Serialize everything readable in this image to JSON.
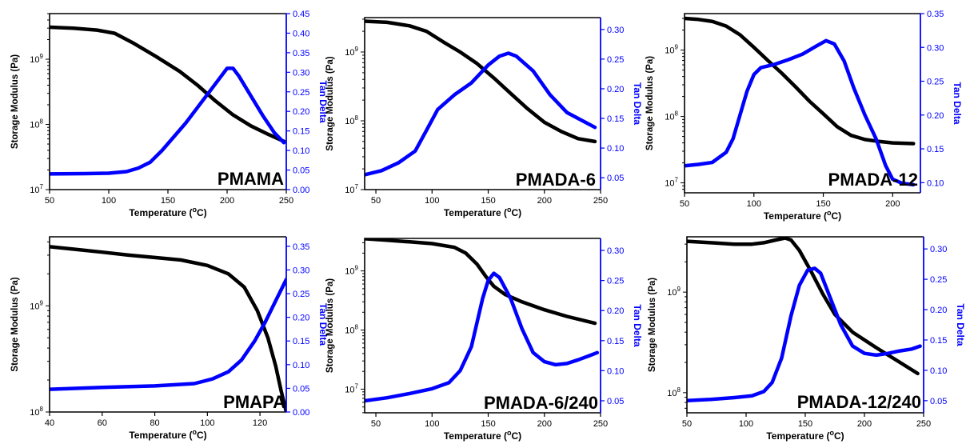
{
  "chart_data": [
    {
      "type": "line",
      "title": "PMAMA",
      "xlabel": "Temperature (°C)",
      "ylabel": "Storage Modulus (Pa)",
      "y2label": "Tan Delta",
      "xlim": [
        50,
        250
      ],
      "xticks": [
        50,
        100,
        150,
        200,
        250
      ],
      "ylim_log": [
        7.0,
        9.7
      ],
      "yticks_exp": [
        7,
        8,
        9
      ],
      "y2lim": [
        0,
        0.45
      ],
      "y2ticks": [
        0.0,
        0.05,
        0.1,
        0.15,
        0.2,
        0.25,
        0.3,
        0.35,
        0.4,
        0.45
      ],
      "y2tick_labels": [
        "0.00",
        "0.05",
        "0.10",
        "0.15",
        "0.20",
        "0.25",
        "0.30",
        "0.35",
        "0.40",
        "0.45"
      ],
      "series": [
        {
          "axis": "left",
          "color": "#000000",
          "x": [
            50,
            70,
            90,
            105,
            120,
            140,
            160,
            175,
            190,
            205,
            220,
            235,
            248
          ],
          "y": [
            3100000000.0,
            3000000000.0,
            2800000000.0,
            2500000000.0,
            1800000000.0,
            1100000000.0,
            650000000.0,
            400000000.0,
            230000000.0,
            140000000.0,
            95000000.0,
            70000000.0,
            55000000.0
          ]
        },
        {
          "axis": "right",
          "color": "#0000ff",
          "x": [
            50,
            80,
            100,
            115,
            125,
            135,
            145,
            155,
            165,
            175,
            185,
            195,
            200,
            205,
            210,
            220,
            230,
            240,
            248
          ],
          "y": [
            0.04,
            0.041,
            0.042,
            0.046,
            0.055,
            0.07,
            0.1,
            0.135,
            0.17,
            0.21,
            0.25,
            0.29,
            0.31,
            0.31,
            0.29,
            0.24,
            0.19,
            0.145,
            0.12
          ]
        }
      ]
    },
    {
      "type": "line",
      "title": "PMADA-6",
      "xlabel": "Temperature (°C)",
      "ylabel": "Storage Modulus (Pa)",
      "y2label": "Tan Delta",
      "xlim": [
        40,
        250
      ],
      "xticks": [
        50,
        100,
        150,
        200,
        250
      ],
      "ylim_log": [
        7.0,
        9.5
      ],
      "yticks_exp": [
        7,
        8,
        9
      ],
      "y2lim": [
        0.03,
        0.32
      ],
      "y2ticks": [
        0.05,
        0.1,
        0.15,
        0.2,
        0.25,
        0.3
      ],
      "y2tick_labels": [
        "0.05",
        "0.10",
        "0.15",
        "0.20",
        "0.25",
        "0.30"
      ],
      "series": [
        {
          "axis": "left",
          "color": "#000000",
          "x": [
            40,
            60,
            80,
            95,
            110,
            125,
            140,
            155,
            170,
            185,
            200,
            215,
            230,
            245
          ],
          "y": [
            2800000000.0,
            2700000000.0,
            2400000000.0,
            2000000000.0,
            1400000000.0,
            1000000000.0,
            680000000.0,
            420000000.0,
            250000000.0,
            150000000.0,
            95000000.0,
            70000000.0,
            55000000.0,
            50000000.0
          ]
        },
        {
          "axis": "right",
          "color": "#0000ff",
          "x": [
            40,
            55,
            70,
            85,
            95,
            105,
            120,
            135,
            150,
            160,
            168,
            175,
            190,
            205,
            220,
            235,
            245
          ],
          "y": [
            0.055,
            0.062,
            0.075,
            0.095,
            0.13,
            0.165,
            0.19,
            0.21,
            0.24,
            0.255,
            0.26,
            0.255,
            0.23,
            0.19,
            0.16,
            0.145,
            0.135
          ]
        }
      ]
    },
    {
      "type": "line",
      "title": "PMADA-12",
      "xlabel": "Temperature (°C)",
      "ylabel": "Storage Modulus (Pa)",
      "y2label": "Tan Delta",
      "xlim": [
        50,
        220
      ],
      "xticks": [
        50,
        100,
        150,
        200
      ],
      "ylim_log": [
        6.85,
        9.55
      ],
      "yticks_exp": [
        7,
        8,
        9
      ],
      "y2lim": [
        0.085,
        0.35
      ],
      "y2ticks": [
        0.1,
        0.15,
        0.2,
        0.25,
        0.3,
        0.35
      ],
      "y2tick_labels": [
        "0.10",
        "0.15",
        "0.20",
        "0.25",
        "0.30",
        "0.35"
      ],
      "series": [
        {
          "axis": "left",
          "color": "#000000",
          "x": [
            50,
            60,
            70,
            80,
            90,
            100,
            110,
            120,
            130,
            140,
            150,
            160,
            170,
            180,
            190,
            200,
            215
          ],
          "y": [
            3000000000.0,
            2900000000.0,
            2700000000.0,
            2300000000.0,
            1700000000.0,
            1100000000.0,
            700000000.0,
            450000000.0,
            280000000.0,
            170000000.0,
            110000000.0,
            70000000.0,
            52000000.0,
            45000000.0,
            42000000.0,
            40000000.0,
            39000000.0
          ]
        },
        {
          "axis": "right",
          "color": "#0000ff",
          "x": [
            50,
            60,
            70,
            80,
            85,
            90,
            95,
            100,
            105,
            115,
            125,
            135,
            145,
            152,
            158,
            165,
            172,
            180,
            188,
            195,
            200,
            207,
            215
          ],
          "y": [
            0.125,
            0.127,
            0.13,
            0.145,
            0.165,
            0.2,
            0.235,
            0.26,
            0.27,
            0.275,
            0.282,
            0.29,
            0.302,
            0.31,
            0.305,
            0.28,
            0.24,
            0.2,
            0.165,
            0.125,
            0.105,
            0.099,
            0.097
          ]
        }
      ]
    },
    {
      "type": "line",
      "title": "PMAPA",
      "xlabel": "Temperature (°C)",
      "ylabel": "Storage Modulus (Pa)",
      "y2label": "Tan Delta",
      "xlim": [
        40,
        130
      ],
      "xticks": [
        40,
        60,
        80,
        100,
        120
      ],
      "ylim_log": [
        8.0,
        9.65
      ],
      "yticks_exp": [
        8,
        9
      ],
      "y2lim": [
        0,
        0.37
      ],
      "y2ticks": [
        0.0,
        0.05,
        0.1,
        0.15,
        0.2,
        0.25,
        0.3,
        0.35
      ],
      "y2tick_labels": [
        "0.00",
        "0.05",
        "0.10",
        "0.15",
        "0.20",
        "0.25",
        "0.30",
        "0.35"
      ],
      "series": [
        {
          "axis": "left",
          "color": "#000000",
          "x": [
            40,
            50,
            60,
            70,
            80,
            90,
            100,
            108,
            114,
            119,
            123,
            126,
            128,
            130
          ],
          "y": [
            3600000000.0,
            3400000000.0,
            3200000000.0,
            3000000000.0,
            2850000000.0,
            2700000000.0,
            2400000000.0,
            2000000000.0,
            1500000000.0,
            900000000.0,
            500000000.0,
            270000000.0,
            160000000.0,
            100000000.0
          ]
        },
        {
          "axis": "right",
          "color": "#0000ff",
          "x": [
            40,
            60,
            80,
            95,
            102,
            108,
            113,
            118,
            122,
            126,
            130
          ],
          "y": [
            0.048,
            0.052,
            0.055,
            0.06,
            0.07,
            0.085,
            0.11,
            0.15,
            0.19,
            0.235,
            0.28
          ]
        }
      ]
    },
    {
      "type": "line",
      "title": "PMADA-6/240",
      "xlabel": "Temperature (°C)",
      "ylabel": "Storage Modulus (Pa)",
      "y2label": "Tan Delta",
      "xlim": [
        40,
        250
      ],
      "xticks": [
        50,
        100,
        150,
        200,
        250
      ],
      "ylim_log": [
        6.6,
        9.55
      ],
      "yticks_exp": [
        7,
        8,
        9
      ],
      "y2lim": [
        0.03,
        0.32
      ],
      "y2ticks": [
        0.05,
        0.1,
        0.15,
        0.2,
        0.25,
        0.3
      ],
      "y2tick_labels": [
        "0.05",
        "0.10",
        "0.15",
        "0.20",
        "0.25",
        "0.30"
      ],
      "series": [
        {
          "axis": "left",
          "color": "#000000",
          "x": [
            40,
            60,
            80,
            100,
            120,
            130,
            140,
            148,
            155,
            165,
            180,
            200,
            220,
            245
          ],
          "y": [
            3500000000.0,
            3300000000.0,
            3100000000.0,
            2900000000.0,
            2500000000.0,
            2000000000.0,
            1300000000.0,
            800000000.0,
            550000000.0,
            400000000.0,
            300000000.0,
            220000000.0,
            170000000.0,
            130000000.0
          ]
        },
        {
          "axis": "right",
          "color": "#0000ff",
          "x": [
            40,
            60,
            80,
            100,
            115,
            125,
            135,
            145,
            150,
            155,
            160,
            170,
            180,
            190,
            200,
            210,
            220,
            230,
            240,
            247
          ],
          "y": [
            0.05,
            0.055,
            0.062,
            0.07,
            0.08,
            0.1,
            0.14,
            0.22,
            0.25,
            0.262,
            0.255,
            0.22,
            0.17,
            0.13,
            0.115,
            0.11,
            0.112,
            0.118,
            0.125,
            0.13
          ]
        }
      ]
    },
    {
      "type": "line",
      "title": "PMADA-12/240",
      "xlabel": "Temperature (°C)",
      "ylabel": "Storage Modulus (Pa)",
      "y2label": "Tan Delta",
      "xlim": [
        50,
        250
      ],
      "xticks": [
        50,
        100,
        150,
        200,
        250
      ],
      "ylim_log": [
        7.8,
        9.55
      ],
      "yticks_exp": [
        8,
        9
      ],
      "y2lim": [
        0.03,
        0.32
      ],
      "y2ticks": [
        0.05,
        0.1,
        0.15,
        0.2,
        0.25,
        0.3
      ],
      "y2tick_labels": [
        "0.05",
        "0.10",
        "0.15",
        "0.20",
        "0.25",
        "0.30"
      ],
      "series": [
        {
          "axis": "left",
          "color": "#000000",
          "x": [
            50,
            70,
            90,
            105,
            115,
            125,
            133,
            138,
            145,
            155,
            165,
            175,
            190,
            210,
            230,
            245
          ],
          "y": [
            3200000000.0,
            3100000000.0,
            3000000000.0,
            3000000000.0,
            3100000000.0,
            3300000000.0,
            3450000000.0,
            3300000000.0,
            2600000000.0,
            1600000000.0,
            950000000.0,
            600000000.0,
            400000000.0,
            280000000.0,
            200000000.0,
            155000000.0
          ]
        },
        {
          "axis": "right",
          "color": "#0000ff",
          "x": [
            50,
            70,
            90,
            105,
            115,
            122,
            130,
            138,
            145,
            152,
            158,
            163,
            170,
            180,
            190,
            200,
            210,
            220,
            230,
            240,
            247
          ],
          "y": [
            0.05,
            0.052,
            0.055,
            0.058,
            0.065,
            0.08,
            0.12,
            0.19,
            0.24,
            0.265,
            0.268,
            0.26,
            0.225,
            0.175,
            0.14,
            0.128,
            0.125,
            0.128,
            0.132,
            0.135,
            0.14
          ]
        }
      ]
    }
  ]
}
